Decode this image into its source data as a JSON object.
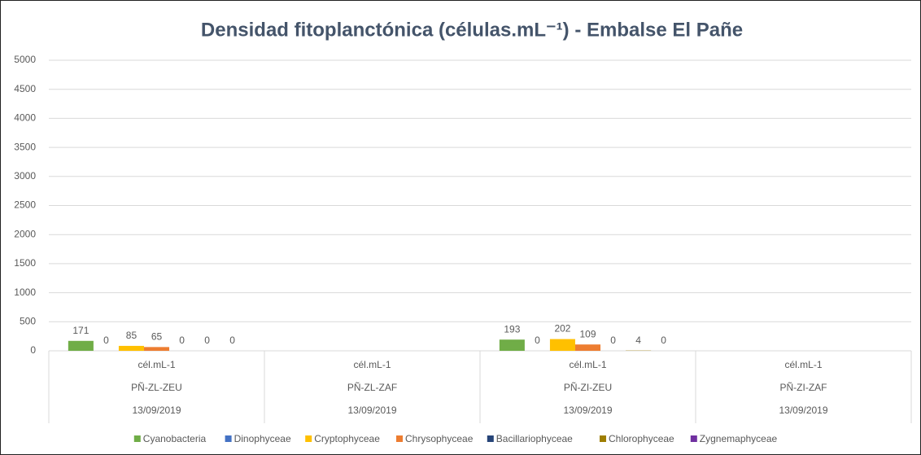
{
  "chart_data": {
    "type": "bar",
    "title": "Densidad fitoplanctónica (células.mL⁻¹) - Embalse El Pañe",
    "categories": [
      [
        "cél.mL-1",
        "PÑ-ZL-ZEU",
        "13/09/2019"
      ],
      [
        "cél.mL-1",
        "PÑ-ZL-ZAF",
        "13/09/2019"
      ],
      [
        "cél.mL-1",
        "PÑ-ZI-ZEU",
        "13/09/2019"
      ],
      [
        "cél.mL-1",
        "PÑ-ZI-ZAF",
        "13/09/2019"
      ]
    ],
    "series": [
      {
        "name": "Cyanobacteria",
        "color": "#70ad47",
        "values": [
          171,
          null,
          193,
          null
        ]
      },
      {
        "name": "Dinophyceae",
        "color": "#4472c4",
        "values": [
          0,
          null,
          0,
          null
        ]
      },
      {
        "name": "Cryptophyceae",
        "color": "#ffc000",
        "values": [
          85,
          null,
          202,
          null
        ]
      },
      {
        "name": "Chrysophyceae",
        "color": "#ed7d31",
        "values": [
          65,
          null,
          109,
          null
        ]
      },
      {
        "name": "Bacillariophyceae",
        "color": "#264478",
        "values": [
          0,
          null,
          0,
          null
        ]
      },
      {
        "name": "Chlorophyceae",
        "color": "#9e7e00",
        "values": [
          0,
          null,
          4,
          null
        ]
      },
      {
        "name": "Zygnemaphyceae",
        "color": "#7030a0",
        "values": [
          0,
          null,
          0,
          null
        ]
      }
    ],
    "ylim": [
      0,
      5000
    ],
    "yticks": [
      0,
      500,
      1000,
      1500,
      2000,
      2500,
      3000,
      3500,
      4000,
      4500,
      5000
    ],
    "grid": true,
    "legend": "bottom"
  }
}
